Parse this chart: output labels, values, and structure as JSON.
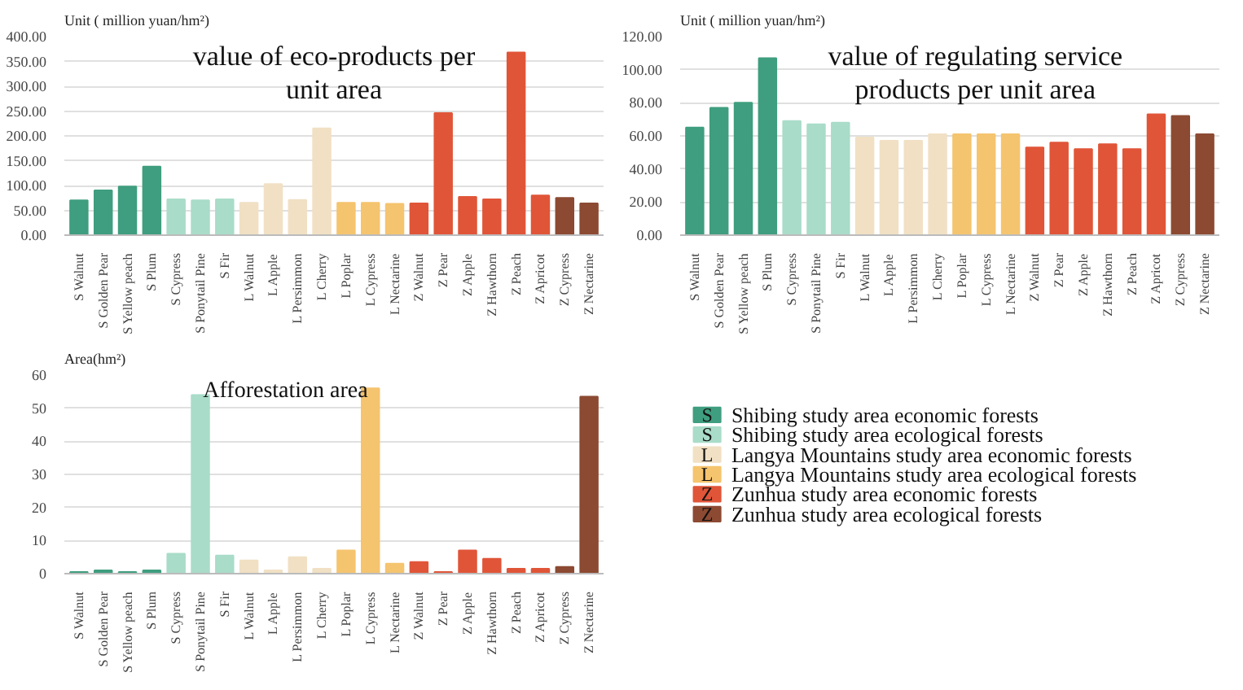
{
  "chart_data": [
    {
      "type": "bar",
      "title": "value of eco-products per unit area",
      "ylabel": "Unit ( million yuan/hm²)",
      "categories": [
        "S Walnut",
        "S Golden Pear",
        "S Yellow peach",
        "S Plum",
        "S Cypress",
        "S Ponytail Pine",
        "S Fir",
        "L Walnut",
        "L Apple",
        "L Persimmon",
        "L Cherry",
        "L Poplar",
        "L Cypress",
        "L Nectarine",
        "Z Walnut",
        "Z Pear",
        "Z Apple",
        "Z Hawthorn",
        "Z Peach",
        "Z Apricot",
        "Z Cypress",
        "Z Nectarine"
      ],
      "values": [
        70,
        90,
        98,
        138,
        72,
        70,
        72,
        65,
        103,
        71,
        215,
        65,
        65,
        63,
        64,
        246,
        77,
        72,
        368,
        80,
        75,
        64
      ],
      "colors": [
        "#3f9e7f",
        "#3f9e7f",
        "#3f9e7f",
        "#3f9e7f",
        "#a9dcc9",
        "#a9dcc9",
        "#a9dcc9",
        "#f1e0c4",
        "#f1e0c4",
        "#f1e0c4",
        "#f1e0c4",
        "#f5c46e",
        "#f5c46e",
        "#f5c46e",
        "#e05538",
        "#e05538",
        "#e05538",
        "#e05538",
        "#e05538",
        "#e05538",
        "#8c4a32",
        "#8c4a32"
      ],
      "ylim": [
        0,
        400
      ],
      "yticks": [
        {
          "value": 0,
          "label": "0.00"
        },
        {
          "value": 50,
          "label": "50.00"
        },
        {
          "value": 100,
          "label": "100.00"
        },
        {
          "value": 150,
          "label": "150.00"
        },
        {
          "value": 200,
          "label": "200.00"
        },
        {
          "value": 250,
          "label": "250.00"
        },
        {
          "value": 300,
          "label": "300.00"
        },
        {
          "value": 350,
          "label": "350.00"
        },
        {
          "value": 400,
          "label": "400.00"
        }
      ],
      "grid": "y"
    },
    {
      "type": "bar",
      "title": "value of regulating service products per unit area",
      "ylabel": "Unit ( million yuan/hm²)",
      "categories": [
        "S Walnut",
        "S Golden Pear",
        "S Yellow peach",
        "S Plum",
        "S Cypress",
        "S Ponytail Pine",
        "S Fir",
        "L Walnut",
        "L Apple",
        "L Persimmon",
        "L Cherry",
        "L Poplar",
        "L Cypress",
        "L Nectarine",
        "Z Walnut",
        "Z Pear",
        "Z Apple",
        "Z Hawthorn",
        "Z Peach",
        "Z Apricot",
        "Z Cypress",
        "Z Nectarine"
      ],
      "values": [
        65,
        77,
        80,
        107,
        69,
        67,
        68,
        59,
        57,
        57,
        61,
        61,
        61,
        61,
        53,
        56,
        52,
        55,
        52,
        73,
        72,
        61
      ],
      "colors": [
        "#3f9e7f",
        "#3f9e7f",
        "#3f9e7f",
        "#3f9e7f",
        "#a9dcc9",
        "#a9dcc9",
        "#a9dcc9",
        "#f1e0c4",
        "#f1e0c4",
        "#f1e0c4",
        "#f1e0c4",
        "#f5c46e",
        "#f5c46e",
        "#f5c46e",
        "#e05538",
        "#e05538",
        "#e05538",
        "#e05538",
        "#e05538",
        "#e05538",
        "#8c4a32",
        "#8c4a32"
      ],
      "ylim": [
        0,
        120
      ],
      "yticks": [
        {
          "value": 0,
          "label": "0.00"
        },
        {
          "value": 20,
          "label": "20.00"
        },
        {
          "value": 40,
          "label": "40.00"
        },
        {
          "value": 60,
          "label": "60.00"
        },
        {
          "value": 80,
          "label": "80.00"
        },
        {
          "value": 100,
          "label": "100.00"
        },
        {
          "value": 120,
          "label": "120.00"
        }
      ],
      "grid": "y"
    },
    {
      "type": "bar",
      "title": "Afforestation area",
      "ylabel": "Area(hm²)",
      "categories": [
        "S Walnut",
        "S Golden Pear",
        "S Yellow peach",
        "S Plum",
        "S Cypress",
        "S Ponytail Pine",
        "S Fir",
        "L Walnut",
        "L Apple",
        "L Persimmon",
        "L Cherry",
        "L Poplar",
        "L Cypress",
        "L Nectarine",
        "Z Walnut",
        "Z Pear",
        "Z Apple",
        "Z Hawthorn",
        "Z Peach",
        "Z Apricot",
        "Z Cypress",
        "Z Nectarine"
      ],
      "values": [
        0.5,
        1,
        0.5,
        1,
        6,
        54,
        5.5,
        4,
        1,
        5,
        1.5,
        7,
        56,
        3,
        3.5,
        0.5,
        7,
        4.5,
        1.5,
        1.5,
        2,
        53.5
      ],
      "colors": [
        "#3f9e7f",
        "#3f9e7f",
        "#3f9e7f",
        "#3f9e7f",
        "#a9dcc9",
        "#a9dcc9",
        "#a9dcc9",
        "#f1e0c4",
        "#f1e0c4",
        "#f1e0c4",
        "#f1e0c4",
        "#f5c46e",
        "#f5c46e",
        "#f5c46e",
        "#e05538",
        "#e05538",
        "#e05538",
        "#e05538",
        "#e05538",
        "#e05538",
        "#8c4a32",
        "#8c4a32"
      ],
      "ylim": [
        0,
        60
      ],
      "yticks": [
        0,
        10,
        20,
        30,
        40,
        50,
        60
      ],
      "grid": "y"
    },
    {
      "type": "other",
      "categories": [
        "Shibing  study area economic forests",
        "Shibing  study area ecological forests",
        "Langya Mountains study area economic forests",
        "Langya Mountains study area ecological forests",
        "Zunhua study area economic forests",
        "Zunhua study area ecological forests"
      ],
      "colors": [
        "#3f9e7f",
        "#a9dcc9",
        "#f1e0c4",
        "#f5c46e",
        "#e05538",
        "#8c4a32"
      ],
      "annotations": [
        "S",
        "S",
        "L",
        "L",
        "Z",
        "Z"
      ]
    }
  ]
}
